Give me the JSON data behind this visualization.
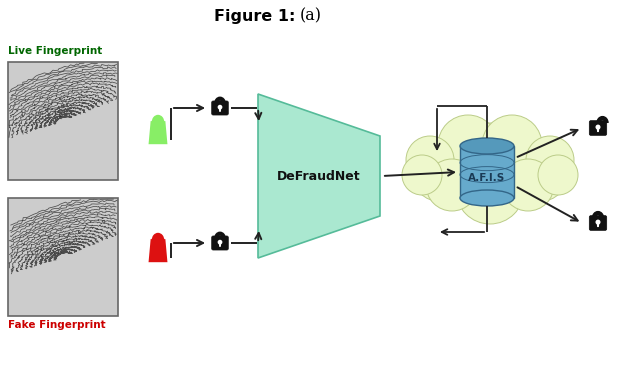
{
  "title": "Figure 1:",
  "title_suffix": "(a)",
  "bg_color": "#ffffff",
  "live_label": "Live Fingerprint",
  "fake_label": "Fake Fingerprint",
  "live_label_color": "#006600",
  "fake_label_color": "#cc0000",
  "defraudnet_label": "DeFraudNet",
  "afis_label": "A.F.I.S",
  "live_person_color": "#88ee66",
  "fake_person_color": "#dd1111",
  "trapezoid_color": "#aae8d0",
  "trapezoid_edge": "#55bb99",
  "cloud_color": "#eef8cc",
  "cloud_edge_color": "#bbcc88",
  "afis_top_color": "#5599bb",
  "afis_body_color": "#66aacc",
  "lock_color": "#111111",
  "arrow_color": "#222222",
  "fp_bg": "#d8d8d8",
  "fp_line": "#333333"
}
